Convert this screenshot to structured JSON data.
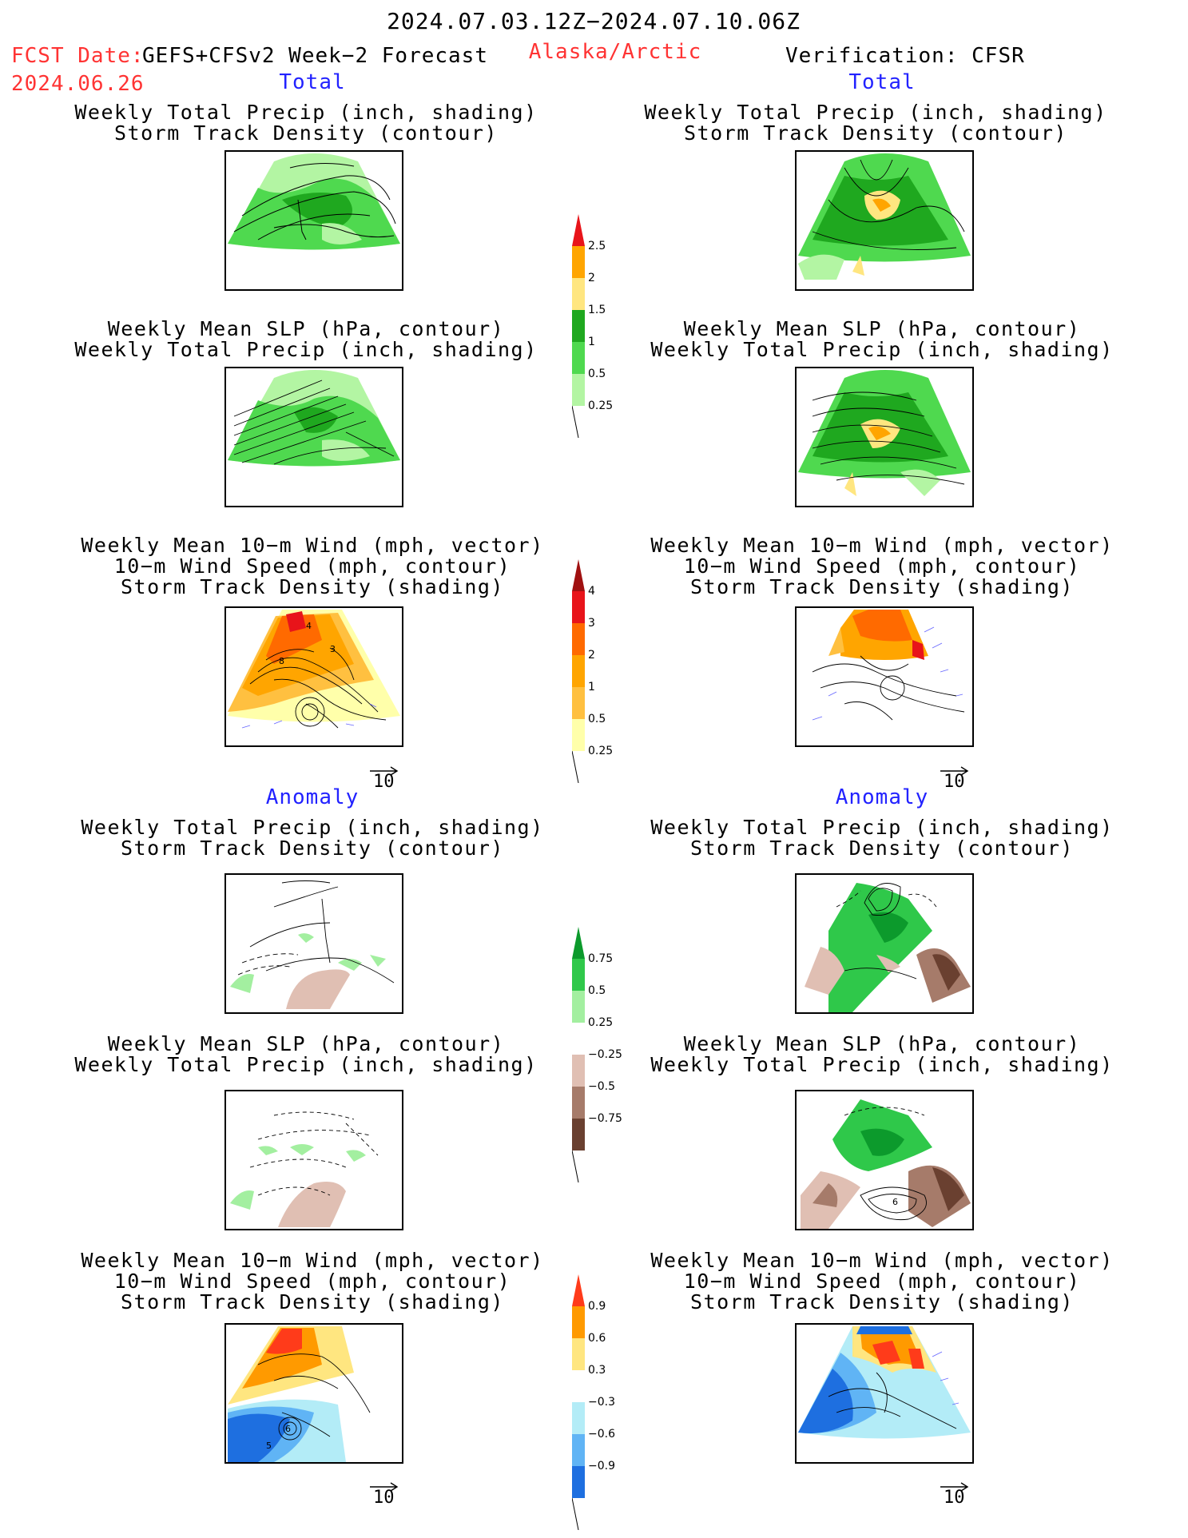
{
  "header": {
    "period": "2024.07.03.12Z−2024.07.10.06Z",
    "fcst_label": "FCST Date:",
    "fcst_date": "2024.06.26",
    "model": "GEFS+CFSv2 Week−2 Forecast",
    "region": "Alaska/Arctic",
    "verification": "Verification: CFSR"
  },
  "sections": {
    "total": "Total",
    "anomaly": "Anomaly"
  },
  "panel_titles": {
    "precip_storm": [
      "Weekly Total Precip (inch, shading)",
      "Storm Track Density (contour)"
    ],
    "slp_precip": [
      "Weekly Mean SLP (hPa, contour)",
      "Weekly Total Precip (inch, shading)"
    ],
    "wind_storm": [
      "Weekly Mean 10−m Wind (mph, vector)",
      "10−m Wind Speed (mph, contour)",
      "Storm Track Density (shading)"
    ]
  },
  "vector_reference": "10",
  "contour_labels": {
    "fcst_total_wind_a": "4",
    "fcst_total_wind_b": "8",
    "fcst_total_wind_c": "3",
    "fcst_anom_wind_a": "6",
    "fcst_anom_wind_b": "5",
    "cfsr_anom_slp": "6"
  },
  "colorbars": {
    "precip_total": {
      "labels": [
        "2.5",
        "2",
        "1.5",
        "1",
        "0.5",
        "0.25"
      ],
      "colors": [
        "#e8141a",
        "#ffa500",
        "#ffe680",
        "#1fa81f",
        "#4fd94f",
        "#b3f5a3"
      ]
    },
    "storm_total": {
      "labels": [
        "4",
        "3",
        "2",
        "1",
        "0.5",
        "0.25"
      ],
      "colors": [
        "#a01010",
        "#e8141a",
        "#ff6a00",
        "#ffa500",
        "#ffc040",
        "#ffffaa"
      ]
    },
    "precip_anom": {
      "labels": [
        "0.75",
        "0.5",
        "0.25",
        "−0.25",
        "−0.5",
        "−0.75"
      ],
      "colors": [
        "#0c9a2c",
        "#2fc84a",
        "#a3efa0",
        "#ffffff",
        "#e0bfb3",
        "#a67b6a",
        "#6a4030"
      ]
    },
    "storm_anom": {
      "labels": [
        "0.9",
        "0.6",
        "0.3",
        "−0.3",
        "−0.6",
        "−0.9"
      ],
      "colors": [
        "#ff3b1a",
        "#ff9a00",
        "#ffe680",
        "#ffffff",
        "#b3ecf7",
        "#60b4f5",
        "#1e6fe0"
      ]
    }
  }
}
